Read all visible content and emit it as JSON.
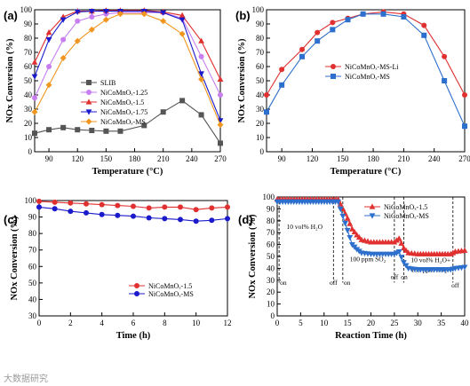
{
  "colors": {
    "SLIB": "#555555",
    "NiCoMnOx-1.25": "#c87ef0",
    "NiCoMnOx-1.5": "#e03030",
    "NiCoMnOx-1.75": "#1a1acc",
    "NiCoMnOx-MS": "#f0961e",
    "NiCoMnOx-MS-Li": "#e03030",
    "NiCoMnOx-MS-b": "#2d6fcc"
  },
  "watermark": "大数据研究",
  "chart_data": [
    {
      "panel": "(a)",
      "type": "line",
      "xlabel": "Temperature (°C)",
      "ylabel": "NOx Conversion (%)",
      "xlim": [
        75,
        270
      ],
      "ylim": [
        0,
        100
      ],
      "xticks": [
        90,
        120,
        150,
        180,
        210,
        240,
        270
      ],
      "yticks": [
        0,
        10,
        20,
        30,
        40,
        50,
        60,
        70,
        80,
        90,
        100
      ],
      "legend_position": "center-right",
      "x": [
        75,
        90,
        105,
        120,
        135,
        150,
        165,
        190,
        210,
        230,
        250,
        270
      ],
      "series": [
        {
          "name": "SLIB",
          "marker": "square",
          "color_key": "SLIB",
          "values": [
            13,
            15.5,
            17,
            15.5,
            15,
            14.5,
            14.5,
            18.5,
            28,
            36,
            26,
            6
          ]
        },
        {
          "name": "NiCoMnOₓ-1.25",
          "marker": "circle",
          "color_key": "NiCoMnOx-1.25",
          "values": [
            38,
            60,
            79,
            92,
            95,
            97,
            98,
            98,
            98,
            94,
            67,
            40
          ]
        },
        {
          "name": "NiCoMnOₓ-1.5",
          "marker": "triangle-up",
          "color_key": "NiCoMnOx-1.5",
          "values": [
            63,
            84,
            95,
            99,
            99,
            99.5,
            99.5,
            99.5,
            98.5,
            96,
            78,
            51
          ]
        },
        {
          "name": "NiCoMnOₓ-1.75",
          "marker": "triangle-down",
          "color_key": "NiCoMnOx-1.75",
          "values": [
            53,
            79,
            93,
            98.5,
            99,
            99,
            99,
            99,
            98,
            93,
            55,
            22
          ]
        },
        {
          "name": "NiCoMnOₓ-MS",
          "marker": "diamond",
          "color_key": "NiCoMnOx-MS",
          "values": [
            28,
            47,
            66,
            78,
            86,
            93,
            97,
            97,
            92,
            83,
            51,
            19
          ]
        }
      ]
    },
    {
      "panel": "(b)",
      "type": "line",
      "xlabel": "Temperature (°C)",
      "ylabel": "NOx Conversion (%)",
      "xlim": [
        75,
        270
      ],
      "ylim": [
        0,
        100
      ],
      "xticks": [
        90,
        120,
        150,
        180,
        210,
        240,
        270
      ],
      "yticks": [
        0,
        10,
        20,
        30,
        40,
        50,
        60,
        70,
        80,
        90,
        100
      ],
      "legend_position": "center",
      "x": [
        75,
        90,
        110,
        125,
        140,
        155,
        170,
        190,
        210,
        230,
        250,
        270
      ],
      "series": [
        {
          "name": "NiCoMnOₓ-MS-Li",
          "marker": "circle",
          "color_key": "NiCoMnOx-MS-Li",
          "values": [
            40,
            58,
            72,
            84,
            91,
            94,
            97,
            98.5,
            97,
            89,
            67,
            40
          ]
        },
        {
          "name": "NiCoMnOₓ-MS",
          "marker": "square",
          "color_key": "NiCoMnOx-MS-b",
          "values": [
            28,
            47,
            67,
            78,
            86,
            93,
            97,
            97,
            95,
            82,
            50,
            18
          ]
        }
      ]
    },
    {
      "panel": "(c)",
      "type": "line",
      "xlabel": "Time (h)",
      "ylabel": "NOx Conversion (%)",
      "xlim": [
        0,
        12
      ],
      "ylim": [
        30,
        100
      ],
      "xticks": [
        0,
        2,
        4,
        6,
        8,
        10,
        12
      ],
      "yticks": [
        30,
        40,
        50,
        60,
        70,
        80,
        90,
        100
      ],
      "legend_position": "bottom-right",
      "x": [
        0,
        1,
        2,
        3,
        4,
        5,
        6,
        7,
        8,
        9,
        10,
        11,
        12
      ],
      "series": [
        {
          "name": "NiCoMnOₓ-1.5",
          "marker": "circle",
          "color_key": "NiCoMnOx-1.5",
          "values": [
            99.5,
            99,
            98.5,
            98,
            97.5,
            97,
            96.5,
            95.5,
            96,
            96,
            94.5,
            95.5,
            96
          ]
        },
        {
          "name": "NiCoMnOₓ-MS",
          "marker": "circle",
          "color_key": "NiCoMnOx-1.75",
          "values": [
            96,
            95,
            93.5,
            92.5,
            91.5,
            91,
            90.5,
            89.5,
            89,
            88.5,
            87.5,
            88,
            89
          ]
        }
      ]
    },
    {
      "panel": "(d)",
      "type": "line",
      "xlabel": "Reaction Time (h)",
      "ylabel": "NOx Conversion (%)",
      "xlim": [
        0,
        40
      ],
      "ylim": [
        0,
        100
      ],
      "xticks": [
        0,
        5,
        10,
        15,
        20,
        25,
        30,
        35,
        40
      ],
      "yticks": [
        0,
        10,
        20,
        30,
        40,
        50,
        60,
        70,
        80,
        90,
        100
      ],
      "legend_position": "top-right",
      "x": [
        0,
        13,
        14,
        15,
        16,
        17,
        18,
        20,
        25,
        26,
        27,
        28,
        30,
        37,
        38,
        40
      ],
      "series": [
        {
          "name": "NiCoMnOₓ-1.5",
          "marker": "triangle-up",
          "color_key": "NiCoMnOx-1.5",
          "values": [
            98,
            98,
            90,
            82,
            73,
            68,
            64,
            62,
            62,
            65,
            57,
            53,
            52,
            52,
            54,
            55
          ]
        },
        {
          "name": "NiCoMnOₓ-MS",
          "marker": "triangle-down",
          "color_key": "NiCoMnOx-MS-b",
          "values": [
            96,
            96,
            84,
            72,
            60,
            56,
            53,
            52,
            52,
            54,
            45,
            40,
            39,
            39,
            40,
            41
          ]
        }
      ],
      "events": [
        {
          "x": 0.4,
          "label": "on"
        },
        {
          "x": 12,
          "label": "off"
        },
        {
          "x": 14,
          "label": "on"
        },
        {
          "x": 25,
          "label": "off"
        },
        {
          "x": 27,
          "label": "on"
        },
        {
          "x": 37.5,
          "label": "off"
        }
      ],
      "annotations": [
        {
          "text": "10 vol% H₂O"
        },
        {
          "text": "100 ppm SO₂"
        },
        {
          "text": "10 vol% H₂O+"
        },
        {
          "text": "100 ppm SO₂"
        }
      ]
    }
  ]
}
